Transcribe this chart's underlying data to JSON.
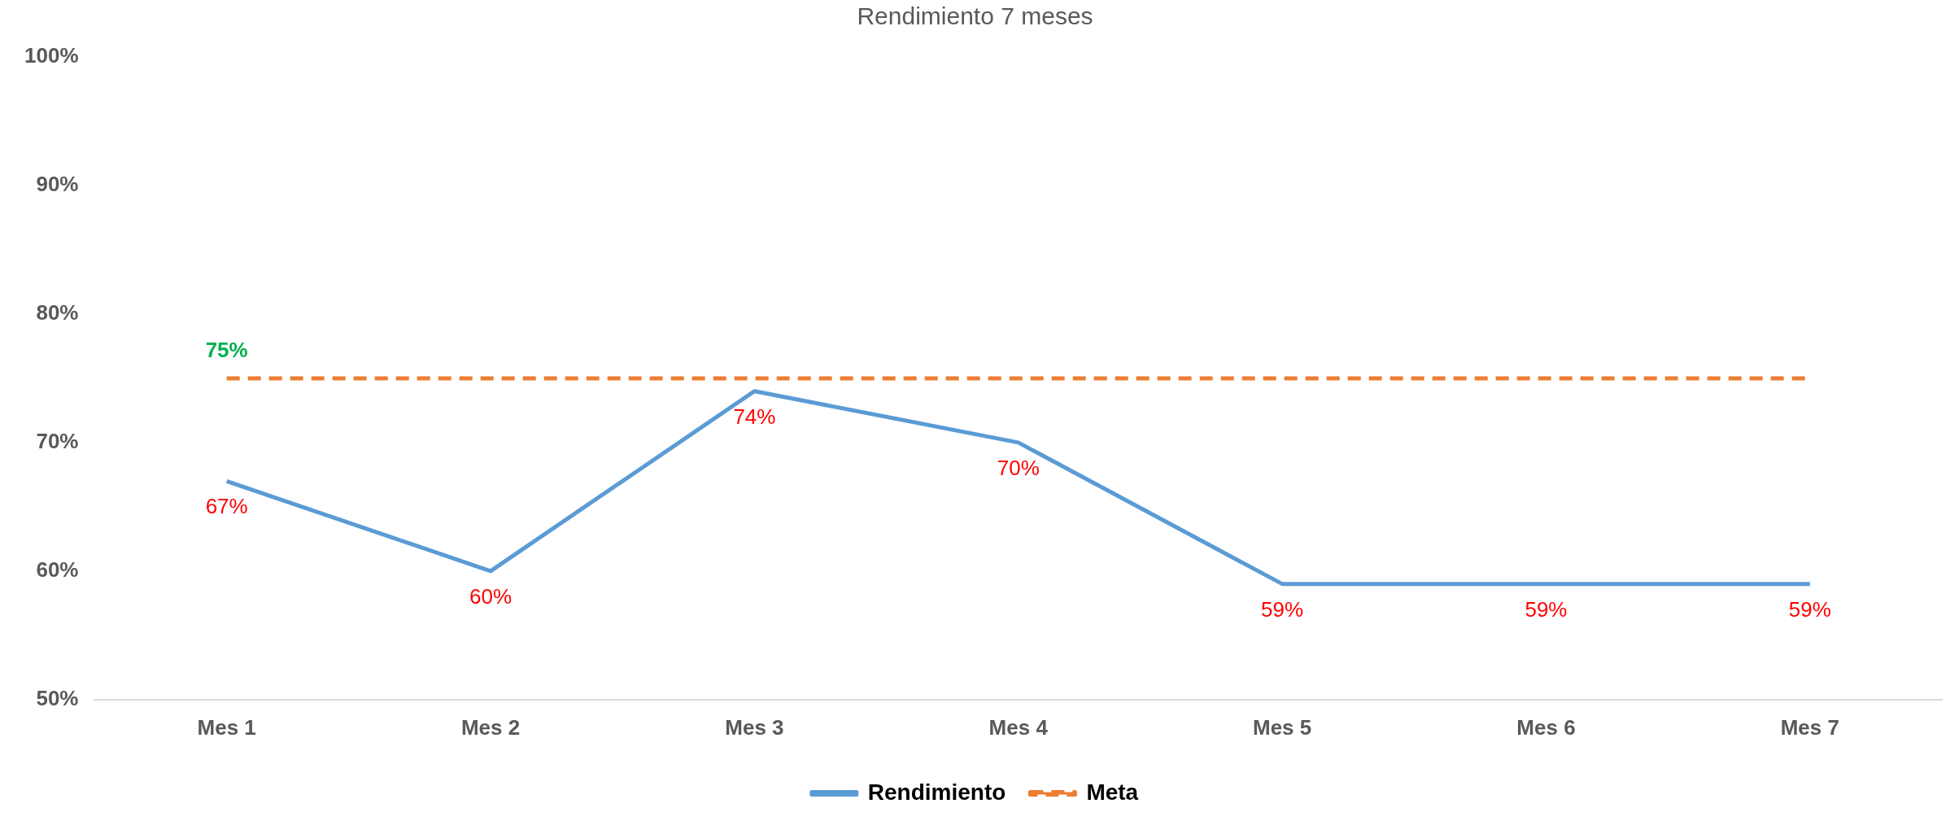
{
  "chart_data": {
    "type": "line",
    "title": "Rendimiento 7 meses",
    "categories": [
      "Mes 1",
      "Mes 2",
      "Mes 3",
      "Mes 4",
      "Mes 5",
      "Mes 6",
      "Mes 7"
    ],
    "series": [
      {
        "name": "Rendimiento",
        "color": "#5b9bd5",
        "values": [
          67,
          60,
          74,
          70,
          59,
          59,
          59
        ],
        "line_style": "solid",
        "value_labels": [
          "67%",
          "60%",
          "74%",
          "70%",
          "59%",
          "59%",
          "59%"
        ]
      },
      {
        "name": "Meta",
        "color": "#ed7d31",
        "values": [
          75,
          75,
          75,
          75,
          75,
          75,
          75
        ],
        "line_style": "dashed",
        "value_labels": [
          "75%",
          null,
          null,
          null,
          null,
          null,
          null
        ]
      }
    ],
    "ylim": [
      50,
      100
    ],
    "yticks": [
      {
        "value": 50,
        "label": "50%"
      },
      {
        "value": 60,
        "label": "60%"
      },
      {
        "value": 70,
        "label": "70%"
      },
      {
        "value": 80,
        "label": "80%"
      },
      {
        "value": 90,
        "label": "90%"
      },
      {
        "value": 100,
        "label": "100%"
      }
    ],
    "grid": false,
    "legend": "bottom",
    "marker": "none"
  }
}
